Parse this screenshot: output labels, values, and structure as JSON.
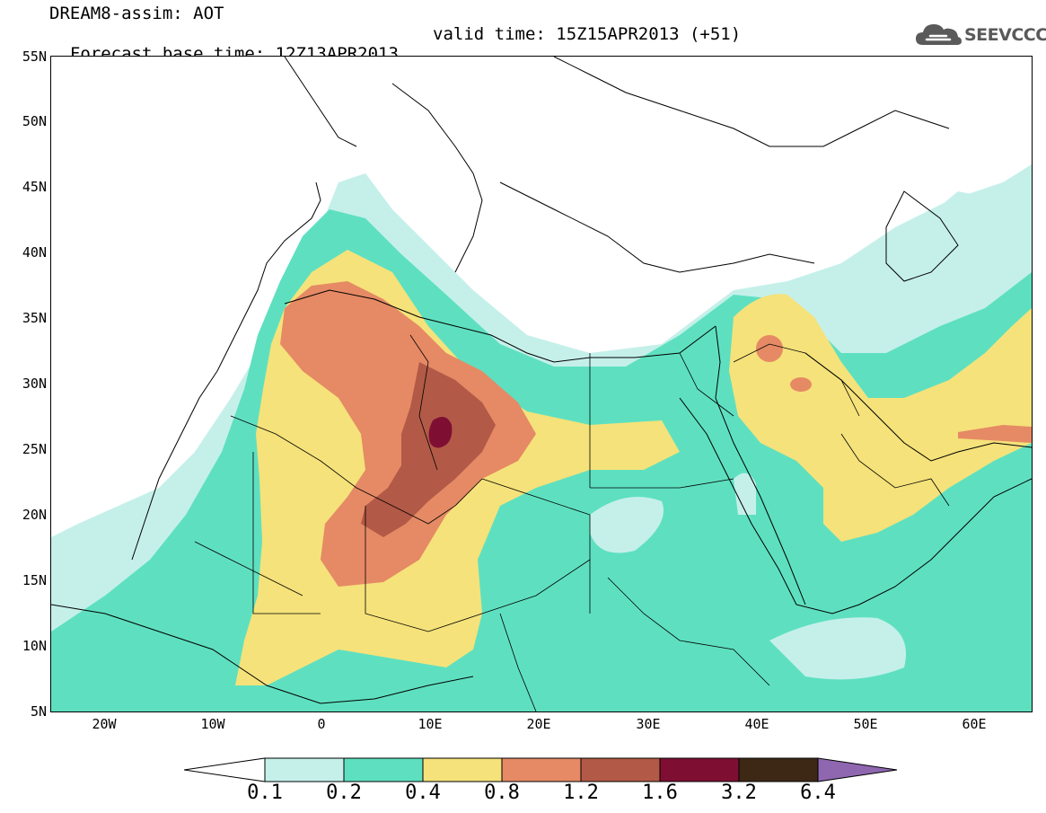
{
  "header": {
    "title": "DREAM8-assim: AOT",
    "base_time": "Forecast base time: 12Z13APR2013",
    "valid_time": "valid time: 15Z15APR2013 (+51)"
  },
  "logo": {
    "text": "SEEVCCC",
    "icon": "cloud-icon",
    "color": "#5a5a5a"
  },
  "axes": {
    "lat_labels": [
      "55N",
      "50N",
      "45N",
      "40N",
      "35N",
      "30N",
      "25N",
      "20N",
      "15N",
      "10N",
      "5N"
    ],
    "lon_labels": [
      "20W",
      "10W",
      "0",
      "10E",
      "20E",
      "30E",
      "40E",
      "50E",
      "60E"
    ],
    "lat_range": [
      5,
      55
    ],
    "lon_range": [
      -25,
      65
    ]
  },
  "colorbar": {
    "labels": [
      "0.1",
      "0.2",
      "0.4",
      "0.8",
      "1.2",
      "1.6",
      "3.2",
      "6.4"
    ],
    "colors": {
      "below": "#ffffff",
      "c1": "#c5f0ea",
      "c2": "#5ee0c0",
      "c3": "#f5e27a",
      "c4": "#e58a65",
      "c5": "#b25a47",
      "c6": "#7e0f33",
      "c7": "#3d2816",
      "above": "#8f67b0"
    }
  }
}
